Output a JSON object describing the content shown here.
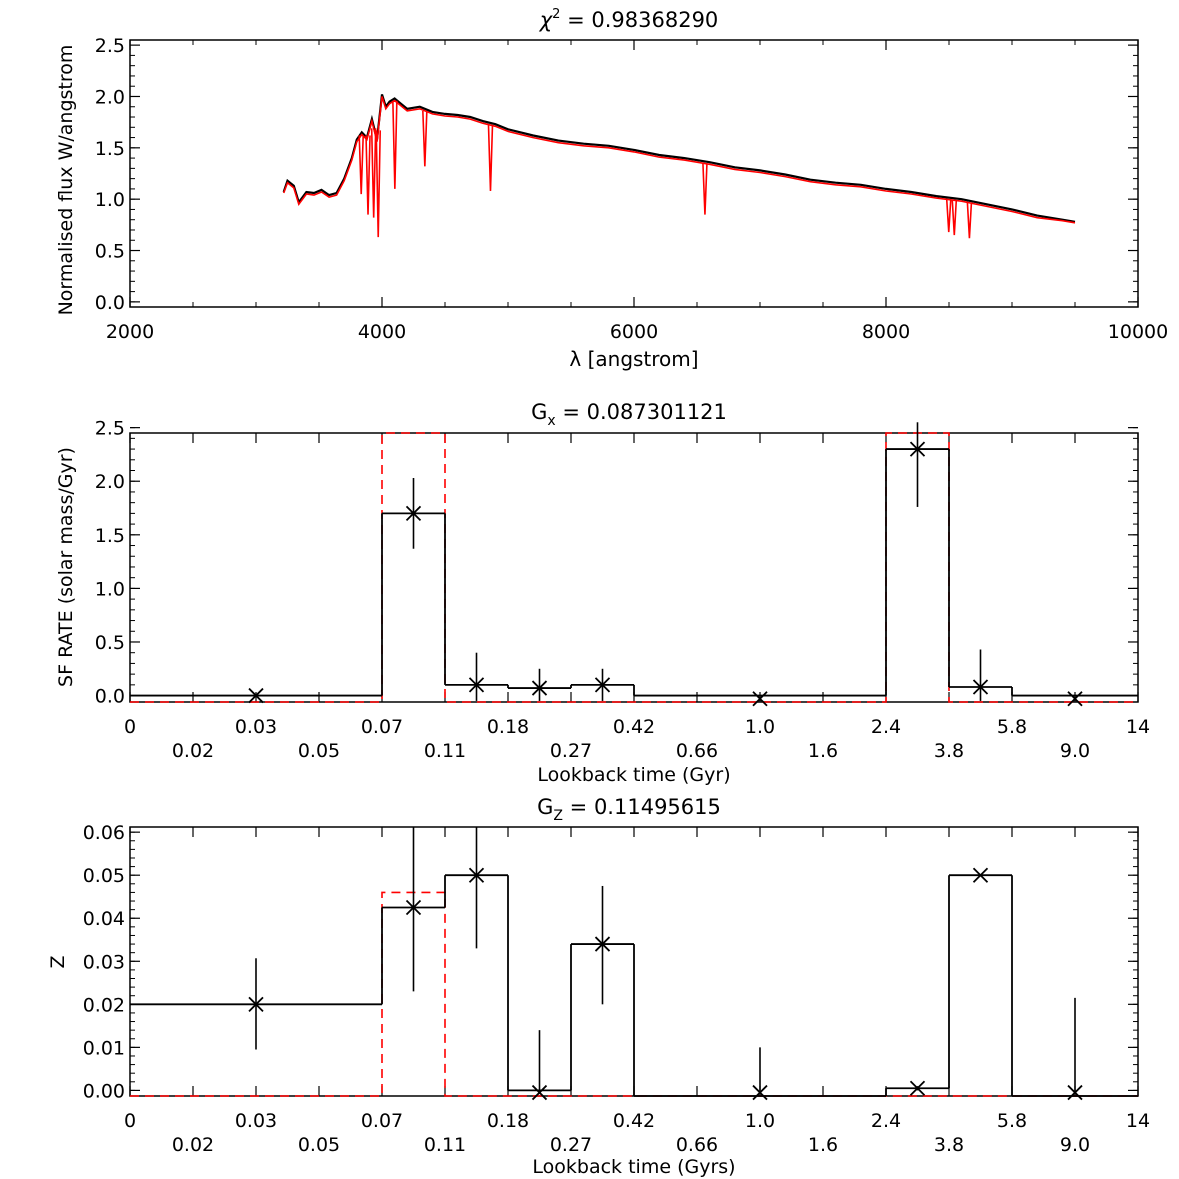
{
  "chart_data": [
    {
      "type": "line",
      "title": "χ² = 0.98368290",
      "title_parts": {
        "sym": "χ",
        "sup": "2",
        "rest": " = 0.98368290"
      },
      "xlabel": "λ [angstrom]",
      "ylabel": "Normalised flux W/angstrom",
      "xlim": [
        2000,
        10000
      ],
      "ylim": [
        -0.05,
        2.55
      ],
      "xticks": [
        2000,
        4000,
        6000,
        8000,
        10000
      ],
      "yticks": [
        "0.0",
        "0.5",
        "1.0",
        "1.5",
        "2.0",
        "2.5"
      ],
      "series": [
        {
          "color": "#000000",
          "x": [
            3220,
            3250,
            3300,
            3340,
            3400,
            3460,
            3520,
            3580,
            3640,
            3700,
            3760,
            3800,
            3840,
            3880,
            3920,
            3960,
            4000,
            4030,
            4060,
            4100,
            4150,
            4200,
            4300,
            4400,
            4500,
            4600,
            4700,
            4800,
            4900,
            5000,
            5200,
            5400,
            5600,
            5800,
            6000,
            6200,
            6400,
            6600,
            6800,
            7000,
            7200,
            7400,
            7600,
            7800,
            8000,
            8200,
            8400,
            8600,
            8800,
            9000,
            9200,
            9400,
            9500
          ],
          "y": [
            1.07,
            1.18,
            1.13,
            0.97,
            1.07,
            1.06,
            1.09,
            1.04,
            1.06,
            1.2,
            1.4,
            1.58,
            1.65,
            1.6,
            1.78,
            1.58,
            2.02,
            1.9,
            1.95,
            1.98,
            1.93,
            1.88,
            1.9,
            1.85,
            1.83,
            1.82,
            1.8,
            1.76,
            1.73,
            1.68,
            1.62,
            1.57,
            1.54,
            1.52,
            1.48,
            1.43,
            1.4,
            1.36,
            1.31,
            1.28,
            1.24,
            1.19,
            1.16,
            1.14,
            1.1,
            1.07,
            1.03,
            1.0,
            0.95,
            0.9,
            0.84,
            0.8,
            0.78
          ]
        },
        {
          "color": "#ff0000",
          "x": [
            3220,
            3250,
            3300,
            3340,
            3400,
            3460,
            3520,
            3580,
            3640,
            3700,
            3760,
            3800,
            3840,
            3880,
            3920,
            3960,
            4000,
            4030,
            4060,
            4100,
            4150,
            4200,
            4300,
            4400,
            4500,
            4600,
            4700,
            4800,
            4900,
            5000,
            5200,
            5400,
            5600,
            5800,
            6000,
            6200,
            6400,
            6600,
            6800,
            7000,
            7200,
            7400,
            7600,
            7800,
            8000,
            8200,
            8400,
            8600,
            8800,
            9000,
            9200,
            9400,
            9500
          ],
          "y": [
            1.06,
            1.16,
            1.11,
            0.95,
            1.05,
            1.04,
            1.07,
            1.02,
            1.04,
            1.18,
            1.38,
            1.56,
            1.63,
            1.58,
            1.76,
            1.56,
            2.0,
            1.88,
            1.93,
            1.96,
            1.91,
            1.86,
            1.88,
            1.83,
            1.81,
            1.8,
            1.78,
            1.74,
            1.71,
            1.66,
            1.6,
            1.55,
            1.52,
            1.5,
            1.46,
            1.41,
            1.38,
            1.34,
            1.29,
            1.26,
            1.22,
            1.17,
            1.14,
            1.12,
            1.08,
            1.05,
            1.01,
            0.98,
            0.93,
            0.88,
            0.82,
            0.79,
            0.77
          ]
        }
      ],
      "absorption_lines": [
        {
          "x": 3835,
          "y": 1.05
        },
        {
          "x": 3889,
          "y": 0.85
        },
        {
          "x": 3934,
          "y": 0.82
        },
        {
          "x": 3970,
          "y": 0.63
        },
        {
          "x": 4102,
          "y": 1.1
        },
        {
          "x": 4340,
          "y": 1.32
        },
        {
          "x": 4861,
          "y": 1.08
        },
        {
          "x": 6563,
          "y": 0.85
        },
        {
          "x": 8498,
          "y": 0.68
        },
        {
          "x": 8542,
          "y": 0.65
        },
        {
          "x": 8662,
          "y": 0.62
        }
      ]
    },
    {
      "type": "bar",
      "title": "Gₓ = 0.087301121",
      "title_parts": {
        "sym": "G",
        "sub": "x",
        "rest": " = 0.087301121"
      },
      "xlabel": "Lookback time (Gyr)",
      "ylabel": "SF RATE (solar mass/Gyr)",
      "xlim": [
        0,
        16
      ],
      "ylim": [
        -0.06,
        2.45
      ],
      "yticks": [
        "0.0",
        "0.5",
        "1.0",
        "1.5",
        "2.0",
        "2.5"
      ],
      "xticks_upper": [
        "0",
        "0.03",
        "0.07",
        "0.18",
        "0.42",
        "1.0",
        "2.4",
        "5.8",
        "14"
      ],
      "xticks_lower": [
        "0.02",
        "0.05",
        "0.11",
        "0.27",
        "0.66",
        "1.6",
        "3.8",
        "9.0"
      ],
      "bins": [
        {
          "x0": 0,
          "x1": 4,
          "value": 0.0
        },
        {
          "x0": 4,
          "x1": 5,
          "value": 1.7
        },
        {
          "x0": 5,
          "x1": 6,
          "value": 0.1
        },
        {
          "x0": 6,
          "x1": 7,
          "value": 0.07
        },
        {
          "x0": 7,
          "x1": 8,
          "value": 0.1
        },
        {
          "x0": 8,
          "x1": 12,
          "value": 0.0
        },
        {
          "x0": 12,
          "x1": 13,
          "value": 2.3
        },
        {
          "x0": 13,
          "x1": 14,
          "value": 0.08
        },
        {
          "x0": 14,
          "x1": 16,
          "value": 0.0
        }
      ],
      "points": [
        {
          "x": 2,
          "y": 0.0,
          "lo": 0.0,
          "hi": 0.0
        },
        {
          "x": 4.5,
          "y": 1.7,
          "lo": 1.37,
          "hi": 2.03
        },
        {
          "x": 5.5,
          "y": 0.1,
          "lo": -0.05,
          "hi": 0.4
        },
        {
          "x": 6.5,
          "y": 0.07,
          "lo": -0.05,
          "hi": 0.25
        },
        {
          "x": 7.5,
          "y": 0.1,
          "lo": -0.05,
          "hi": 0.25
        },
        {
          "x": 10,
          "y": -0.03,
          "lo": -0.05,
          "hi": -0.03
        },
        {
          "x": 12.5,
          "y": 2.3,
          "lo": 1.76,
          "hi": 2.55
        },
        {
          "x": 13.5,
          "y": 0.08,
          "lo": -0.05,
          "hi": 0.43
        },
        {
          "x": 15,
          "y": -0.03,
          "lo": -0.05,
          "hi": -0.03
        }
      ],
      "true_bins": [
        {
          "x0": 0,
          "x1": 4,
          "value": -0.06
        },
        {
          "x0": 4,
          "x1": 5,
          "value": 2.45
        },
        {
          "x0": 5,
          "x1": 12,
          "value": -0.06
        },
        {
          "x0": 12,
          "x1": 13,
          "value": 2.45
        },
        {
          "x0": 13,
          "x1": 16,
          "value": -0.06
        }
      ]
    },
    {
      "type": "bar",
      "title": "G_Z = 0.11495615",
      "title_parts": {
        "sym": "G",
        "sub": "Z",
        "rest": " = 0.11495615"
      },
      "xlabel": "Lookback time (Gyrs)",
      "ylabel": "Z",
      "xlim": [
        0,
        16
      ],
      "ylim": [
        -0.0013,
        0.0612
      ],
      "yticks": [
        "0.00",
        "0.01",
        "0.02",
        "0.03",
        "0.04",
        "0.05",
        "0.06"
      ],
      "xticks_upper": [
        "0",
        "0.03",
        "0.07",
        "0.18",
        "0.42",
        "1.0",
        "2.4",
        "5.8",
        "14"
      ],
      "xticks_lower": [
        "0.02",
        "0.05",
        "0.11",
        "0.27",
        "0.66",
        "1.6",
        "3.8",
        "9.0"
      ],
      "bins": [
        {
          "x0": 0,
          "x1": 4,
          "value": 0.02
        },
        {
          "x0": 4,
          "x1": 5,
          "value": 0.0425
        },
        {
          "x0": 5,
          "x1": 6,
          "value": 0.05
        },
        {
          "x0": 6,
          "x1": 7,
          "value": 0.0
        },
        {
          "x0": 7,
          "x1": 8,
          "value": 0.034
        },
        {
          "x0": 8,
          "x1": 12,
          "value": -0.0013
        },
        {
          "x0": 12,
          "x1": 13,
          "value": 0.0005
        },
        {
          "x0": 13,
          "x1": 14,
          "value": 0.05
        },
        {
          "x0": 14,
          "x1": 16,
          "value": -0.0013
        }
      ],
      "points": [
        {
          "x": 2,
          "y": 0.02,
          "lo": 0.0095,
          "hi": 0.0307
        },
        {
          "x": 4.5,
          "y": 0.0425,
          "lo": 0.023,
          "hi": 0.0612
        },
        {
          "x": 5.5,
          "y": 0.05,
          "lo": 0.033,
          "hi": 0.0612
        },
        {
          "x": 6.5,
          "y": -0.0005,
          "lo": -0.0005,
          "hi": 0.014
        },
        {
          "x": 7.5,
          "y": 0.034,
          "lo": 0.02,
          "hi": 0.0475
        },
        {
          "x": 10,
          "y": -0.0005,
          "lo": -0.0005,
          "hi": 0.01
        },
        {
          "x": 12.5,
          "y": 0.0005,
          "lo": 0.0,
          "hi": 0.001
        },
        {
          "x": 13.5,
          "y": 0.05,
          "lo": 0.05,
          "hi": 0.05
        },
        {
          "x": 15,
          "y": -0.0005,
          "lo": -0.0005,
          "hi": 0.0215
        }
      ],
      "true_bins": [
        {
          "x0": 0,
          "x1": 4,
          "value": -0.0013
        },
        {
          "x0": 4,
          "x1": 5,
          "value": 0.046
        },
        {
          "x0": 5,
          "x1": 16,
          "value": -0.0013
        }
      ]
    }
  ]
}
